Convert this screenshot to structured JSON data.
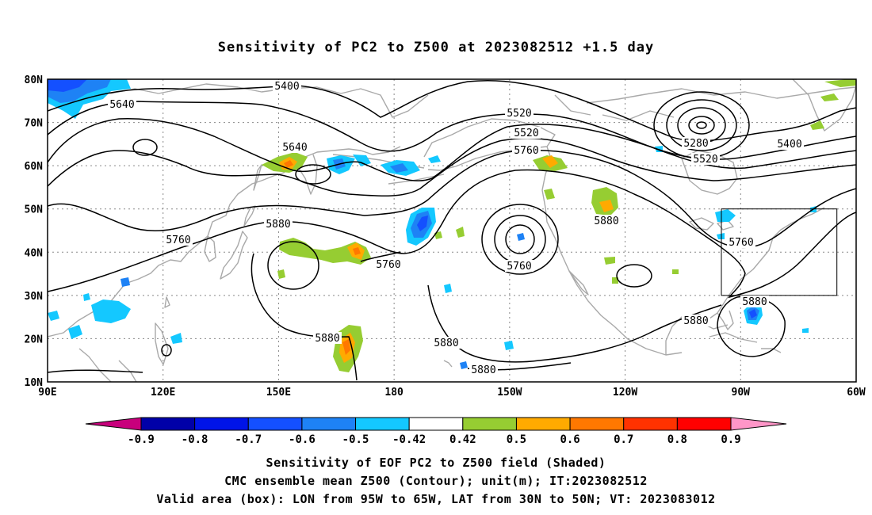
{
  "title": "Sensitivity of PC2 to Z500 at 2023082512 +1.5 day",
  "map": {
    "lon_range": [
      90,
      300
    ],
    "lat_range": [
      10,
      80
    ],
    "lat_labels": [
      {
        "lat": 80,
        "text": "80N"
      },
      {
        "lat": 70,
        "text": "70N"
      },
      {
        "lat": 60,
        "text": "60N"
      },
      {
        "lat": 50,
        "text": "50N"
      },
      {
        "lat": 40,
        "text": "40N"
      },
      {
        "lat": 30,
        "text": "30N"
      },
      {
        "lat": 20,
        "text": "20N"
      },
      {
        "lat": 10,
        "text": "10N"
      }
    ],
    "lon_labels": [
      {
        "lon": 90,
        "text": "90E"
      },
      {
        "lon": 120,
        "text": "120E"
      },
      {
        "lon": 150,
        "text": "150E"
      },
      {
        "lon": 180,
        "text": "180"
      },
      {
        "lon": 210,
        "text": "150W"
      },
      {
        "lon": 240,
        "text": "120W"
      },
      {
        "lon": 270,
        "text": "90W"
      },
      {
        "lon": 300,
        "text": "60W"
      }
    ],
    "contour_labels": [
      {
        "text": "5400",
        "lon": 160,
        "lat": 78
      },
      {
        "text": "5640",
        "lon": 111,
        "lat": 72
      },
      {
        "text": "5520",
        "lon": 177,
        "lat": 70
      },
      {
        "text": "5640",
        "lon": 181,
        "lat": 65
      },
      {
        "text": "5520",
        "lon": 158,
        "lat": 61
      },
      {
        "text": "5760",
        "lon": 188,
        "lat": 61
      },
      {
        "text": "5280",
        "lon": 149,
        "lat": 66
      },
      {
        "text": "5520",
        "lon": 148,
        "lat": 62
      },
      {
        "text": "5400",
        "lon": 169,
        "lat": 65
      },
      {
        "text": "5880",
        "lon": 153,
        "lat": 44
      },
      {
        "text": "5760",
        "lon": 127,
        "lat": 41
      },
      {
        "text": "5760",
        "lon": 185,
        "lat": 36
      },
      {
        "text": "5760",
        "lon": 225,
        "lat": 36
      },
      {
        "text": "5880",
        "lon": 231,
        "lat": 46
      },
      {
        "text": "5760",
        "lon": 280,
        "lat": 42
      },
      {
        "text": "5880",
        "lon": 292,
        "lat": 28
      },
      {
        "text": "5880",
        "lon": 269,
        "lat": 22
      },
      {
        "text": "5880",
        "lon": 180,
        "lat": 20
      },
      {
        "text": "5880",
        "lon": 195,
        "lat": 18
      },
      {
        "text": "5880",
        "lon": 206,
        "lat": 13
      }
    ],
    "valid_box": {
      "lon_min": 265,
      "lon_max": 295,
      "lat_min": 30,
      "lat_max": 50
    }
  },
  "colorbar": {
    "labels": [
      "-0.9",
      "-0.8",
      "-0.7",
      "-0.6",
      "-0.5",
      "-0.42",
      "0.42",
      "0.5",
      "0.6",
      "0.7",
      "0.8",
      "0.9"
    ],
    "colors": [
      "#c8007c",
      "#0000a8",
      "#0014e8",
      "#1450ff",
      "#1e82f5",
      "#14c8ff",
      "#ffffff",
      "#96cd32",
      "#ffaa00",
      "#ff7800",
      "#ff3200",
      "#ff0000",
      "#ff96c8"
    ]
  },
  "captions": {
    "line1": "Sensitivity of EOF PC2 to Z500 field (Shaded)",
    "line2": "CMC ensemble mean Z500 (Contour); unit(m); IT:2023082512",
    "line3": "Valid area (box): LON from 95W to 65W, LAT from 30N to 50N; VT: 2023083012"
  }
}
